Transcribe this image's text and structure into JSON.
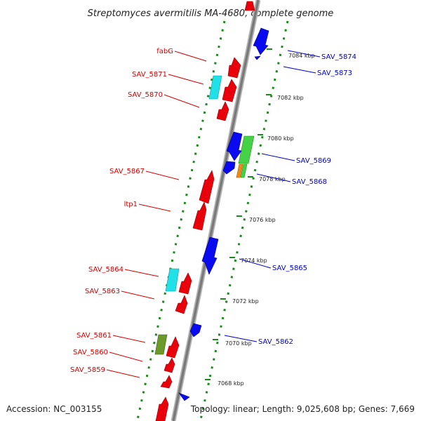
{
  "title": "Streptomyces avermitilis MA-4680, complete genome",
  "footer": {
    "accession": "Accession: NC_003155",
    "summary": "Topology: linear; Length: 9,025,608 bp; Genes: 7,669"
  },
  "colors": {
    "plus_strand": "#e8000b",
    "minus_strand": "#0a0af0",
    "cyan": "#22e0e8",
    "green": "#46d246",
    "olive": "#6b9a2a",
    "orange": "#f08a14",
    "label_left": "#d40000",
    "label_right": "#0000c8",
    "ruler": "#1a8a1a",
    "axis": "#888888"
  },
  "ticks": [
    {
      "label": "7084 kbp",
      "pos": 7084.0
    },
    {
      "label": "7082 kbp",
      "pos": 7082.0
    },
    {
      "label": "7080 kbp",
      "pos": 7080.0
    },
    {
      "label": "7078 kbp",
      "pos": 7078.0
    },
    {
      "label": "7076 kbp",
      "pos": 7076.0
    },
    {
      "label": "7074 kbp",
      "pos": 7074.0
    },
    {
      "label": "7072 kbp",
      "pos": 7072.0
    },
    {
      "label": "7070 kbp",
      "pos": 7070.0
    },
    {
      "label": "7068 kbp",
      "pos": 7068.0
    }
  ],
  "left_labels": [
    {
      "text": "fabG"
    },
    {
      "text": "SAV_5871"
    },
    {
      "text": "SAV_5870"
    },
    {
      "text": "SAV_5867"
    },
    {
      "text": "ltp1"
    },
    {
      "text": "SAV_5864"
    },
    {
      "text": "SAV_5863"
    },
    {
      "text": "SAV_5861"
    },
    {
      "text": "SAV_5860"
    },
    {
      "text": "SAV_5859"
    }
  ],
  "right_labels": [
    {
      "text": "SAV_5874"
    },
    {
      "text": "SAV_5873"
    },
    {
      "text": "SAV_5869"
    },
    {
      "text": "SAV_5868"
    },
    {
      "text": "SAV_5865"
    },
    {
      "text": "SAV_5862"
    }
  ]
}
